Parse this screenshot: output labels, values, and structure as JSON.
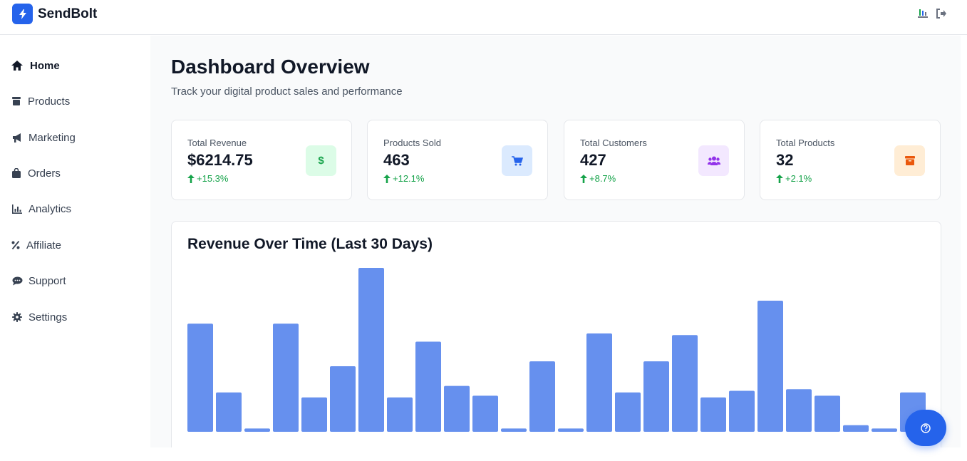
{
  "app": {
    "name": "SendBolt",
    "icons": {
      "logo": "bolt-icon",
      "admin": "admin-icon",
      "logout": "logout-icon"
    }
  },
  "sidebar": {
    "items": [
      {
        "label": "Home",
        "icon": "home-icon",
        "active": true
      },
      {
        "label": "Products",
        "icon": "box-icon"
      },
      {
        "label": "Marketing",
        "icon": "megaphone-icon"
      },
      {
        "label": "Orders",
        "icon": "bag-icon"
      },
      {
        "label": "Analytics",
        "icon": "chart-icon"
      },
      {
        "label": "Affiliate",
        "icon": "percent-icon"
      },
      {
        "label": "Support",
        "icon": "chat-icon"
      },
      {
        "label": "Settings",
        "icon": "gear-icon"
      }
    ]
  },
  "header": {
    "title": "Dashboard Overview",
    "subtitle": "Track your digital product sales and performance"
  },
  "stats": [
    {
      "label": "Total Revenue",
      "value": "$6214.75",
      "change": "+15.3%",
      "icon": "dollar-icon",
      "icon_color": "#16a34a",
      "icon_bg": "#dcfce7"
    },
    {
      "label": "Products Sold",
      "value": "463",
      "change": "+12.1%",
      "icon": "cart-icon",
      "icon_color": "#2563eb",
      "icon_bg": "#dbeafe"
    },
    {
      "label": "Total Customers",
      "value": "427",
      "change": "+8.7%",
      "icon": "users-icon",
      "icon_color": "#9333ea",
      "icon_bg": "#f3e8ff"
    },
    {
      "label": "Total Products",
      "value": "32",
      "change": "+2.1%",
      "icon": "box-icon",
      "icon_color": "#ea580c",
      "icon_bg": "#ffedd5"
    }
  ],
  "chart": {
    "title": "Revenue Over Time (Last 30 Days)"
  },
  "chart_data": {
    "type": "bar",
    "title": "Revenue Over Time (Last 30 Days)",
    "bar_color": "#6690ee",
    "values": [
      66,
      24,
      2,
      66,
      21,
      40,
      100,
      21,
      55,
      28,
      22,
      2,
      43,
      2,
      60,
      24,
      43,
      59,
      21,
      25,
      80,
      26,
      22,
      4,
      2,
      24
    ],
    "ylim": [
      0,
      100
    ],
    "grid": false
  },
  "help": {
    "icon": "question-icon"
  },
  "colors": {
    "accent": "#2563eb",
    "positive": "#16a34a"
  }
}
